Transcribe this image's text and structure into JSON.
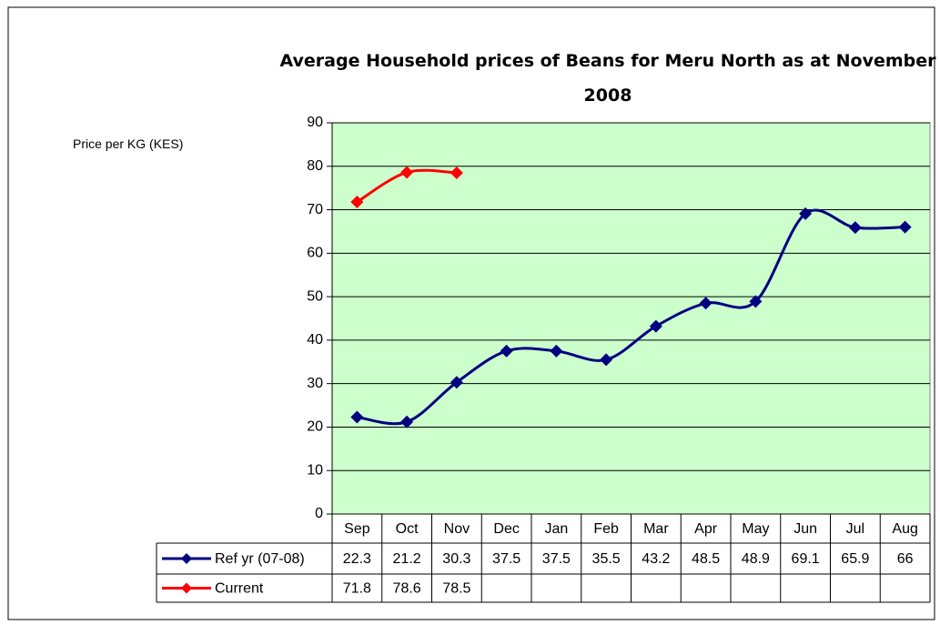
{
  "chart_data": {
    "type": "line",
    "title": "Average Household prices of Beans for Meru North as at November 2008",
    "y_label": "Price per KG (KES)",
    "categories": [
      "Sep",
      "Oct",
      "Nov",
      "Dec",
      "Jan",
      "Feb",
      "Mar",
      "Apr",
      "May",
      "Jun",
      "Jul",
      "Aug"
    ],
    "series": [
      {
        "name": "Ref yr (07-08)",
        "color": "#000080",
        "values": [
          22.3,
          21.2,
          30.3,
          37.5,
          37.5,
          35.5,
          43.2,
          48.5,
          48.9,
          69.1,
          65.9,
          66
        ]
      },
      {
        "name": "Current",
        "color": "#ff0000",
        "values": [
          71.8,
          78.6,
          78.5,
          null,
          null,
          null,
          null,
          null,
          null,
          null,
          null,
          null
        ]
      }
    ],
    "ylim": [
      0,
      90
    ],
    "yticks": [
      0,
      10,
      20,
      30,
      40,
      50,
      60,
      70,
      80,
      90
    ],
    "grid": true,
    "plot_background": "#ccffcc",
    "smooth": true,
    "data_table": true
  }
}
